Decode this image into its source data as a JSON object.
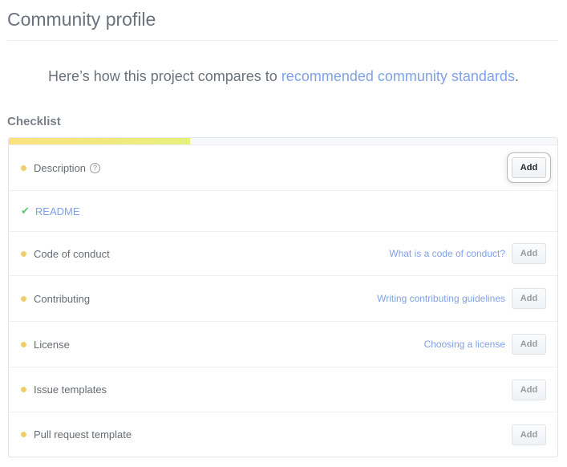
{
  "title": "Community profile",
  "tagline": {
    "prefix": "Here’s how this project compares to ",
    "link": "recommended community standards",
    "suffix": "."
  },
  "checklist": {
    "heading": "Checklist",
    "progress_percent": 33,
    "items": [
      {
        "label": "Description",
        "status": "missing",
        "help_icon": "question-circle-icon",
        "button": "Add",
        "highlighted": true
      },
      {
        "label": "README",
        "status": "done"
      },
      {
        "label": "Code of conduct",
        "status": "missing",
        "link": "What is a code of conduct?",
        "button": "Add"
      },
      {
        "label": "Contributing",
        "status": "missing",
        "link": "Writing contributing guidelines",
        "button": "Add"
      },
      {
        "label": "License",
        "status": "missing",
        "link": "Choosing a license",
        "button": "Add"
      },
      {
        "label": "Issue templates",
        "status": "missing",
        "button": "Add"
      },
      {
        "label": "Pull request template",
        "status": "missing",
        "button": "Add"
      }
    ]
  },
  "colors": {
    "link": "#7fa1e8",
    "pending_dot": "#f0cd6d",
    "check": "#5cc37a"
  }
}
